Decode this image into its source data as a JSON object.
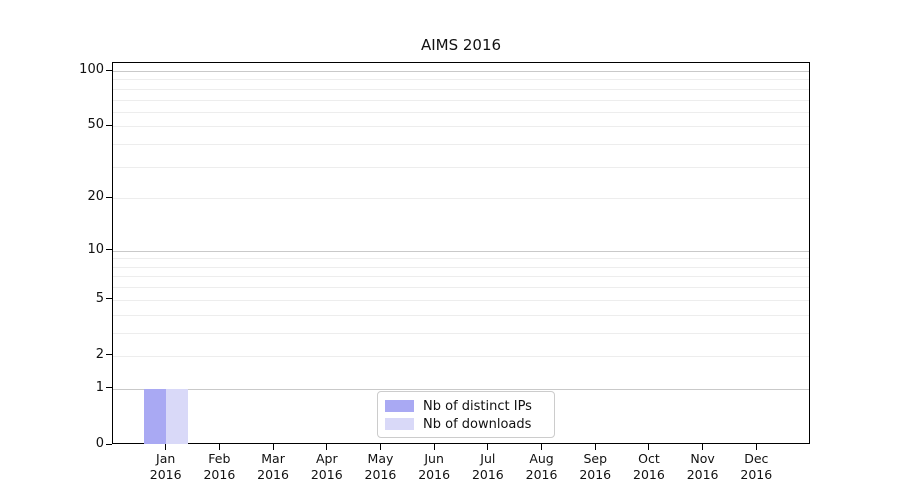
{
  "chart_data": {
    "type": "bar",
    "title": "AIMS 2016",
    "x_tick_months": [
      "Jan",
      "Feb",
      "Mar",
      "Apr",
      "May",
      "Jun",
      "Jul",
      "Aug",
      "Sep",
      "Oct",
      "Nov",
      "Dec"
    ],
    "x_tick_year": "2016",
    "y_ticks": [
      0,
      1,
      2,
      5,
      10,
      20,
      50,
      100
    ],
    "y_scale": "log1p",
    "ylim": [
      0,
      110
    ],
    "grid": "horizontal",
    "legend_position": "bottom-center",
    "series": [
      {
        "name": "Nb of distinct IPs",
        "color": "#a9a9f3",
        "values": [
          1,
          0,
          0,
          0,
          0,
          0,
          0,
          0,
          0,
          0,
          0,
          0
        ]
      },
      {
        "name": "Nb of downloads",
        "color": "#d9d9f8",
        "values": [
          1,
          0,
          0,
          0,
          0,
          0,
          0,
          0,
          0,
          0,
          0,
          0
        ]
      }
    ],
    "colors": {
      "major_grid": "#c9c9c9",
      "minor_grid": "#ededed",
      "axis": "#000000",
      "text": "#111111"
    }
  }
}
